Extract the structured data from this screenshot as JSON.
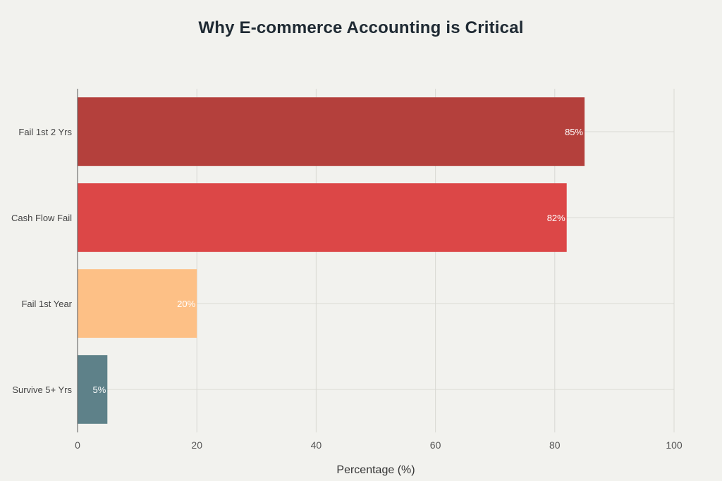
{
  "chart_data": {
    "type": "bar",
    "orientation": "horizontal",
    "title": "Why E-commerce Accounting is Critical",
    "xlabel": "Percentage (%)",
    "ylabel": "",
    "xlim": [
      0,
      100
    ],
    "x_ticks": [
      "0",
      "20",
      "40",
      "60",
      "80",
      "100"
    ],
    "grid": true,
    "categories": [
      "Fail 1st 2 Yrs",
      "Cash Flow Fail",
      "Fail 1st Year",
      "Survive 5+ Yrs"
    ],
    "values": [
      85,
      82,
      20,
      5
    ],
    "data_labels": [
      "85%",
      "82%",
      "20%",
      "5%"
    ],
    "colors": [
      "#b4403c",
      "#dc4747",
      "#fdc086",
      "#5e8189"
    ]
  }
}
